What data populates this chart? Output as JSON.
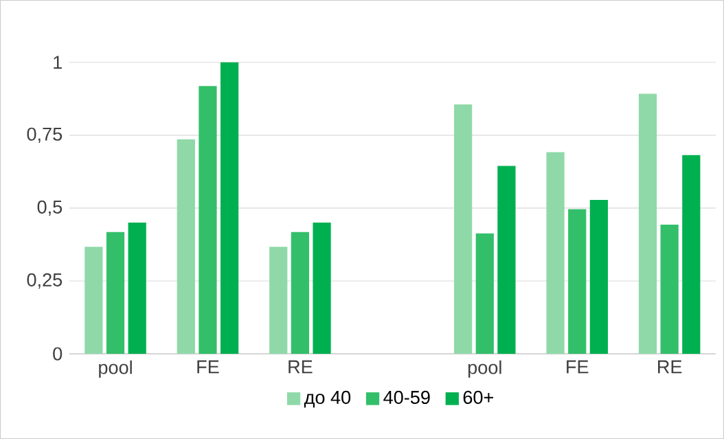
{
  "chart_data": {
    "type": "bar",
    "categories": [
      "pool",
      "FE",
      "RE",
      null,
      "pool",
      "FE",
      "RE"
    ],
    "series": [
      {
        "name": "до 40",
        "color": "#8fd9a8",
        "values": [
          0.367,
          0.736,
          0.367,
          null,
          0.856,
          0.692,
          0.892
        ]
      },
      {
        "name": "40-59",
        "color": "#33bf6a",
        "values": [
          0.418,
          0.919,
          0.418,
          null,
          0.413,
          0.496,
          0.443
        ]
      },
      {
        "name": "60+",
        "color": "#00b050",
        "values": [
          0.45,
          1.0,
          0.45,
          null,
          0.645,
          0.528,
          0.682
        ]
      }
    ],
    "ylim": [
      0,
      1
    ],
    "yticks": [
      0,
      {
        "value": 0.25,
        "label": "0,25"
      },
      {
        "value": 0.5,
        "label": "0,5"
      },
      {
        "value": 0.75,
        "label": "0,75"
      },
      1
    ],
    "grid": "y",
    "legend": "bottom"
  }
}
